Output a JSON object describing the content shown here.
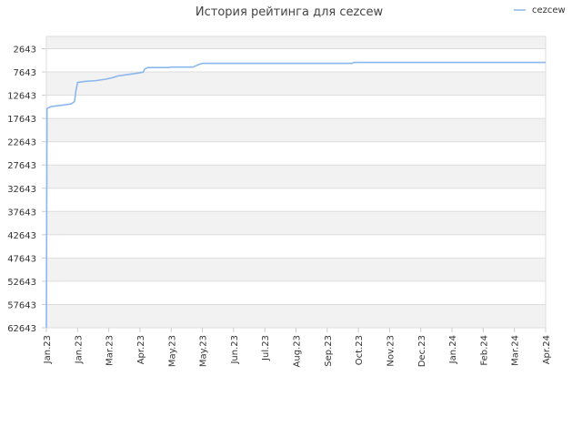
{
  "chart_data": {
    "type": "line",
    "title": "История рейтинга для cezcew",
    "xlabel": "",
    "ylabel": "",
    "y_inverted": true,
    "ylim": [
      62643,
      0
    ],
    "y_ticks": [
      2643,
      7643,
      12643,
      17643,
      22643,
      27643,
      32643,
      37643,
      42643,
      47643,
      52643,
      57643,
      62643
    ],
    "x_ticks": [
      "Jan.23",
      "Jan.23",
      "Mar.23",
      "Apr.23",
      "May.23",
      "May.23",
      "Jun.23",
      "Jul.23",
      "Aug.23",
      "Sep.23",
      "Oct.23",
      "Nov.23",
      "Dec.23",
      "Jan.24",
      "Feb.24",
      "Mar.24",
      "Apr.24"
    ],
    "grid": true,
    "legend": {
      "position": "top-right"
    },
    "series": [
      {
        "name": "cezcew",
        "color": "#8ab8ee",
        "points": [
          [
            0.0,
            62643
          ],
          [
            0.02,
            15500
          ],
          [
            0.15,
            15100
          ],
          [
            0.5,
            14800
          ],
          [
            0.8,
            14500
          ],
          [
            0.9,
            14000
          ],
          [
            0.95,
            11600
          ],
          [
            1.0,
            9900
          ],
          [
            1.2,
            9700
          ],
          [
            1.6,
            9500
          ],
          [
            1.9,
            9200
          ],
          [
            2.1,
            8900
          ],
          [
            2.3,
            8500
          ],
          [
            2.6,
            8200
          ],
          [
            2.9,
            7900
          ],
          [
            3.1,
            7700
          ],
          [
            3.15,
            7000
          ],
          [
            3.25,
            6700
          ],
          [
            3.9,
            6700
          ],
          [
            4.0,
            6600
          ],
          [
            4.7,
            6600
          ],
          [
            4.8,
            6300
          ],
          [
            4.9,
            6000
          ],
          [
            5.0,
            5800
          ],
          [
            6.0,
            5800
          ],
          [
            7.0,
            5800
          ],
          [
            8.0,
            5800
          ],
          [
            9.0,
            5800
          ],
          [
            9.8,
            5800
          ],
          [
            9.85,
            5600
          ],
          [
            11.0,
            5600
          ],
          [
            12.0,
            5600
          ],
          [
            13.0,
            5600
          ],
          [
            14.0,
            5600
          ],
          [
            15.0,
            5600
          ],
          [
            16.0,
            5600
          ]
        ]
      }
    ]
  }
}
